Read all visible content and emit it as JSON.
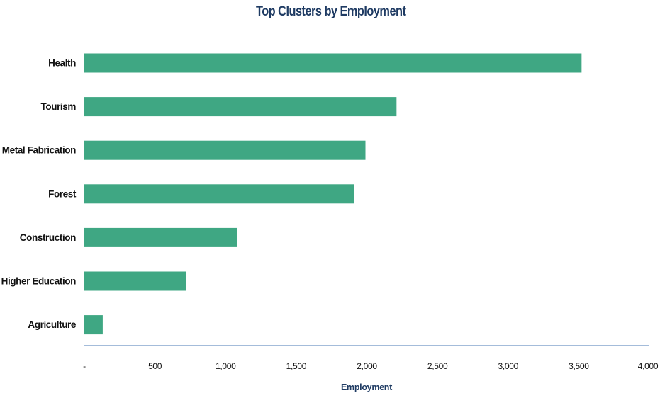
{
  "chart_data": {
    "type": "bar",
    "orientation": "horizontal",
    "title": "Top Clusters by Employment",
    "xlabel": "Employment",
    "ylabel": "",
    "categories": [
      "Health",
      "Tourism",
      "Metal Fabrication",
      "Forest",
      "Construction",
      "Higher Education",
      "Agriculture"
    ],
    "values": [
      3520,
      2210,
      1990,
      1910,
      1080,
      720,
      130
    ],
    "xlim": [
      0,
      4000
    ],
    "x_ticks": [
      0,
      500,
      1000,
      1500,
      2000,
      2500,
      3000,
      3500,
      4000
    ],
    "x_tick_labels": [
      "-",
      "500",
      "1,000",
      "1,500",
      "2,000",
      "2,500",
      "3,000",
      "3,500",
      "4,000"
    ],
    "grid": false,
    "legend": "none",
    "colors": {
      "bar": "#3fa783",
      "title": "#1f3b63",
      "axis_title": "#1f3b63",
      "axis_line": "#4a7ab5",
      "text": "#111111"
    }
  }
}
